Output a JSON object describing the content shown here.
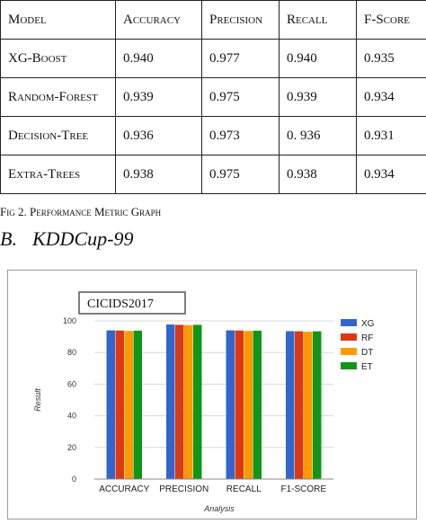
{
  "table": {
    "headers": [
      "Model",
      "Accuracy",
      "Precision",
      "Recall",
      "F-Score"
    ],
    "rows": [
      [
        "XG-Boost",
        "0.940",
        "0.977",
        "0.940",
        "0.935"
      ],
      [
        "Random-Forest",
        "0.939",
        "0.975",
        "0.939",
        "0.934"
      ],
      [
        "Decision-Tree",
        "0.936",
        "0.973",
        "0. 936",
        "0.931"
      ],
      [
        "Extra-Trees",
        "0.938",
        "0.975",
        "0.938",
        "0.934"
      ]
    ]
  },
  "caption": "Fig 2. Performance Metric Graph",
  "section": {
    "number": "B.",
    "title": "KDDCup-99"
  },
  "chart_data": {
    "type": "bar",
    "title": "CICIDS2017",
    "xlabel": "Analysis",
    "ylabel": "Result",
    "categories": [
      "ACCURACY",
      "PRECISION",
      "RECALL",
      "F1-SCORE"
    ],
    "ylim": [
      0,
      100
    ],
    "yticks": [
      0,
      20,
      40,
      60,
      80,
      100
    ],
    "grid": true,
    "legend_position": "right",
    "series": [
      {
        "name": "XG",
        "color": "#3366CC",
        "values": [
          94.0,
          97.7,
          94.0,
          93.5
        ]
      },
      {
        "name": "RF",
        "color": "#DC3912",
        "values": [
          93.9,
          97.5,
          93.9,
          93.4
        ]
      },
      {
        "name": "DT",
        "color": "#FF9900",
        "values": [
          93.6,
          97.3,
          93.6,
          93.1
        ]
      },
      {
        "name": "ET",
        "color": "#109618",
        "values": [
          93.8,
          97.5,
          93.8,
          93.4
        ]
      }
    ]
  }
}
